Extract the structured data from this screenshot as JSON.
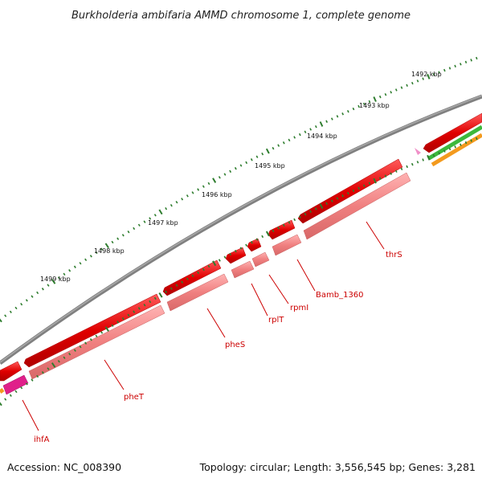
{
  "title": "Burkholderia ambifaria AMMD chromosome 1, complete genome",
  "footer": {
    "accession": "Accession: NC_008390",
    "summary": "Topology: circular; Length: 3,556,545 bp; Genes: 3,281"
  },
  "kbp_ticks": [
    "1492 kbp",
    "1493 kbp",
    "1494 kbp",
    "1495 kbp",
    "1496 kbp",
    "1497 kbp",
    "1498 kbp",
    "1499 kbp"
  ],
  "gene_labels": [
    "thrS",
    "Bamb_1360",
    "rpmI",
    "rplT",
    "pheS",
    "pheT",
    "ihfA"
  ],
  "colors": {
    "backbone": "#808080",
    "cds_forward": "#e00000",
    "cds_reverse": "#f08080",
    "tick": "#2e7d2e",
    "label": "#cc0000",
    "magenta": "#e0208a",
    "green": "#3cb83c",
    "orange": "#f39a1e"
  }
}
